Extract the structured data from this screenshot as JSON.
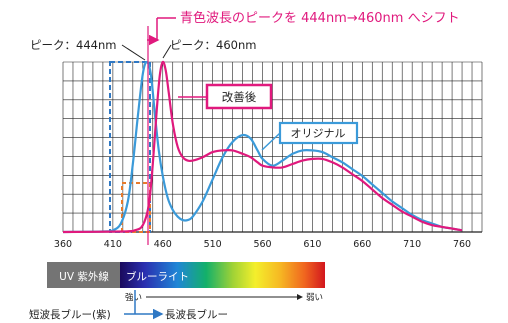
{
  "title_annotation": "青色波長のピークを 444nm→460nm へシフト",
  "peak_labels": {
    "before": "ピーク：444nm",
    "after": "ピーク：460nm"
  },
  "legend": {
    "improved": "改善後",
    "original": "オリジナル"
  },
  "spectrum_bar": {
    "uv_label": "UV 紫外線",
    "blue_label": "ブルーライト"
  },
  "strength_scale": {
    "strong": "強い",
    "weak": "弱い"
  },
  "wavelength_scale": {
    "short": "短波長ブルー(紫)",
    "long": "長波長ブルー"
  },
  "colors": {
    "improved": "#e0197d",
    "original": "#3b9ad9",
    "uv_box": "#747474",
    "dashed_blue": "#2f78c4",
    "dashed_orange": "#e87a2a",
    "grid": "#222222"
  },
  "chart_data": {
    "type": "line",
    "xlabel": "",
    "ylabel": "",
    "xlim": [
      360,
      780
    ],
    "ylim": [
      0,
      1
    ],
    "x_ticks": [
      360,
      410,
      460,
      510,
      560,
      610,
      660,
      710,
      760
    ],
    "grid": true,
    "series": [
      {
        "name": "オリジナル",
        "x": [
          360,
          400,
          410,
          418,
          425,
          430,
          435,
          440,
          444,
          448,
          452,
          456,
          460,
          465,
          470,
          475,
          480,
          485,
          490,
          500,
          510,
          520,
          530,
          540,
          548,
          555,
          560,
          570,
          580,
          590,
          600,
          610,
          620,
          630,
          640,
          650,
          660,
          670,
          680,
          690,
          700,
          710,
          720,
          730,
          740,
          750,
          760
        ],
        "y": [
          0,
          0.003,
          0.01,
          0.05,
          0.18,
          0.4,
          0.68,
          0.93,
          1.0,
          0.93,
          0.7,
          0.48,
          0.33,
          0.2,
          0.13,
          0.09,
          0.07,
          0.07,
          0.09,
          0.18,
          0.31,
          0.44,
          0.53,
          0.57,
          0.55,
          0.48,
          0.43,
          0.39,
          0.42,
          0.46,
          0.48,
          0.48,
          0.47,
          0.44,
          0.41,
          0.37,
          0.33,
          0.28,
          0.23,
          0.18,
          0.14,
          0.1,
          0.07,
          0.05,
          0.03,
          0.02,
          0.01
        ]
      },
      {
        "name": "改善後",
        "x": [
          360,
          420,
          432,
          440,
          446,
          450,
          454,
          457,
          460,
          463,
          466,
          470,
          475,
          480,
          485,
          490,
          500,
          510,
          520,
          530,
          540,
          548,
          555,
          560,
          570,
          580,
          590,
          600,
          610,
          620,
          630,
          640,
          650,
          660,
          670,
          680,
          690,
          700,
          710,
          720,
          730,
          740,
          750,
          760
        ],
        "y": [
          0,
          0.003,
          0.01,
          0.04,
          0.16,
          0.4,
          0.72,
          0.92,
          1.0,
          0.95,
          0.82,
          0.64,
          0.5,
          0.44,
          0.42,
          0.42,
          0.44,
          0.47,
          0.48,
          0.48,
          0.46,
          0.44,
          0.41,
          0.39,
          0.38,
          0.38,
          0.4,
          0.42,
          0.43,
          0.43,
          0.41,
          0.38,
          0.34,
          0.3,
          0.25,
          0.2,
          0.16,
          0.12,
          0.09,
          0.06,
          0.04,
          0.03,
          0.02,
          0.01
        ]
      }
    ]
  }
}
